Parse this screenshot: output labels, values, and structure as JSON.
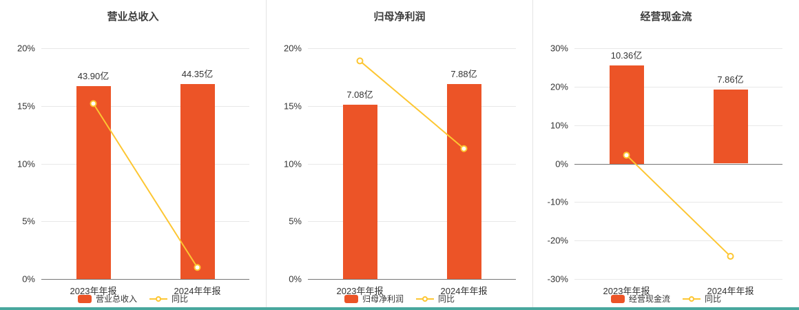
{
  "colors": {
    "bar": "#ec5427",
    "line": "#fdc632",
    "grid": "#e8e8e8",
    "zero_axis": "#757575",
    "text": "#333333",
    "title": "#3c3c3c",
    "divider": "#e3e3e3",
    "bottom_strip": "#48a79d",
    "background": "#ffffff"
  },
  "chart_data": [
    {
      "type": "bar",
      "title": "营业总收入",
      "categories": [
        "2023年年报",
        "2024年年报"
      ],
      "bar_series": {
        "name": "营业总收入",
        "values": [
          43.9,
          44.35
        ],
        "unit": "亿",
        "labels": [
          "43.90亿",
          "44.35亿"
        ],
        "bar_top_on_pct_axis": [
          16.7,
          16.9
        ]
      },
      "line_series": {
        "name": "同比",
        "values_pct": [
          15.2,
          1.0
        ]
      },
      "ylim": [
        0,
        20
      ],
      "yticks_pct": [
        0,
        5,
        10,
        15,
        20
      ],
      "grid": true,
      "legend_position": "bottom",
      "legend": [
        {
          "label": "营业总收入",
          "type": "bar"
        },
        {
          "label": "同比",
          "type": "line"
        }
      ]
    },
    {
      "type": "bar",
      "title": "归母净利润",
      "categories": [
        "2023年年报",
        "2024年年报"
      ],
      "bar_series": {
        "name": "归母净利润",
        "values": [
          7.08,
          7.88
        ],
        "unit": "亿",
        "labels": [
          "7.08亿",
          "7.88亿"
        ],
        "bar_top_on_pct_axis": [
          15.1,
          16.9
        ]
      },
      "line_series": {
        "name": "同比",
        "values_pct": [
          18.9,
          11.3
        ]
      },
      "ylim": [
        0,
        20
      ],
      "yticks_pct": [
        0,
        5,
        10,
        15,
        20
      ],
      "grid": true,
      "legend_position": "bottom",
      "legend": [
        {
          "label": "归母净利润",
          "type": "bar"
        },
        {
          "label": "同比",
          "type": "line"
        }
      ]
    },
    {
      "type": "bar",
      "title": "经营现金流",
      "categories": [
        "2023年年报",
        "2024年年报"
      ],
      "bar_series": {
        "name": "经营现金流",
        "values": [
          10.36,
          7.86
        ],
        "unit": "亿",
        "labels": [
          "10.36亿",
          "7.86亿"
        ],
        "bar_top_on_pct_axis": [
          25.5,
          19.3
        ]
      },
      "line_series": {
        "name": "同比",
        "values_pct": [
          2.2,
          -24.1
        ]
      },
      "ylim": [
        -30,
        30
      ],
      "yticks_pct": [
        -30,
        -20,
        -10,
        0,
        10,
        20,
        30
      ],
      "grid": true,
      "legend_position": "bottom",
      "legend": [
        {
          "label": "经营现金流",
          "type": "bar"
        },
        {
          "label": "同比",
          "type": "line"
        }
      ]
    }
  ]
}
